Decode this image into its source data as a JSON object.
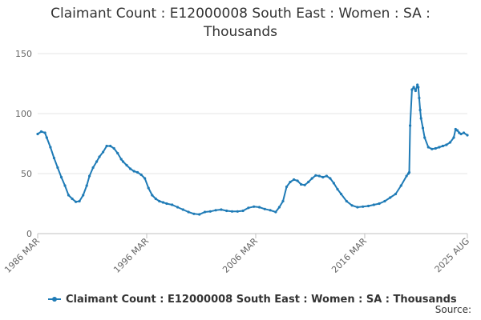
{
  "chart_data": {
    "type": "line",
    "title_line1": "Claimant Count : E12000008 South East : Women : SA :",
    "title_line2": "Thousands",
    "xlabel": "",
    "ylabel": "",
    "ylim": [
      0,
      150
    ],
    "yticks": [
      0,
      50,
      100,
      150
    ],
    "xlim": [
      1986.167,
      2025.583
    ],
    "xticks": [
      {
        "value": 1986.167,
        "label": "1986 MAR"
      },
      {
        "value": 1996.167,
        "label": "1996 MAR"
      },
      {
        "value": 2006.167,
        "label": "2006 MAR"
      },
      {
        "value": 2016.167,
        "label": "2016 MAR"
      },
      {
        "value": 2025.583,
        "label": "2025 AUG"
      }
    ],
    "grid": "horizontal",
    "legend_position": "bottom",
    "colors": {
      "series": "#1f7bb6",
      "grid": "#e6e6e6",
      "axis": "#c0c0c0"
    },
    "series": [
      {
        "name": "Claimant Count : E12000008 South East : Women : SA : Thousands",
        "x": [
          1986.167,
          1986.5,
          1986.833,
          1987.0,
          1987.333,
          1987.667,
          1988.0,
          1988.333,
          1988.667,
          1989.0,
          1989.333,
          1989.667,
          1990.0,
          1990.333,
          1990.667,
          1990.917,
          1991.25,
          1991.583,
          1991.833,
          1992.167,
          1992.5,
          1992.833,
          1993.167,
          1993.5,
          1993.833,
          1994.0,
          1994.333,
          1994.667,
          1995.0,
          1995.333,
          1995.667,
          1996.0,
          1996.333,
          1996.667,
          1997.0,
          1997.333,
          1997.667,
          1998.0,
          1998.5,
          1999.0,
          1999.5,
          2000.0,
          2000.5,
          2001.0,
          2001.5,
          2002.0,
          2002.5,
          2003.0,
          2003.5,
          2004.0,
          2004.5,
          2005.0,
          2005.5,
          2006.0,
          2006.5,
          2007.0,
          2007.5,
          2008.0,
          2008.333,
          2008.667,
          2009.0,
          2009.333,
          2009.667,
          2010.0,
          2010.333,
          2010.667,
          2011.0,
          2011.333,
          2011.667,
          2012.0,
          2012.333,
          2012.667,
          2013.0,
          2013.333,
          2013.667,
          2014.0,
          2014.5,
          2015.0,
          2015.5,
          2016.0,
          2016.5,
          2017.0,
          2017.5,
          2018.0,
          2018.5,
          2019.0,
          2019.5,
          2020.0,
          2020.167,
          2020.25,
          2020.333,
          2020.5,
          2020.667,
          2020.833,
          2021.0,
          2021.083,
          2021.167,
          2021.25,
          2021.333,
          2021.5,
          2021.667,
          2022.0,
          2022.333,
          2022.667,
          2023.0,
          2023.333,
          2023.667,
          2024.0,
          2024.333,
          2024.5,
          2024.667,
          2024.833,
          2025.0,
          2025.25,
          2025.583
        ],
        "values": [
          83,
          85,
          84,
          80,
          72,
          63,
          55,
          47,
          40,
          32,
          29,
          26.5,
          27,
          32,
          40,
          48,
          55,
          60,
          64,
          68,
          73,
          73,
          71,
          67,
          62,
          60,
          57,
          54,
          52,
          51,
          49,
          46,
          38,
          32,
          29,
          27,
          26,
          25,
          24,
          22,
          20,
          18,
          16.5,
          16,
          18,
          18.5,
          19.5,
          20,
          19,
          18.5,
          18.5,
          19,
          21.5,
          22.5,
          22,
          20.5,
          19.5,
          18,
          22,
          27,
          39,
          43,
          45,
          44,
          41,
          40.5,
          43,
          46,
          48.5,
          48,
          47,
          48,
          46,
          42,
          37,
          33,
          27,
          23.5,
          22,
          22.5,
          23,
          24,
          25,
          27,
          30,
          33,
          40,
          48,
          50,
          51,
          90,
          120,
          122,
          119,
          124,
          122,
          113,
          103,
          96,
          88,
          80,
          72,
          70.5,
          71,
          72,
          73,
          74,
          76,
          80,
          87,
          86,
          84,
          83,
          84,
          82
        ]
      }
    ]
  },
  "legend": {
    "label": "Claimant Count : E12000008 South East : Women : SA : Thousands"
  },
  "footer": {
    "source_label": "Source:"
  }
}
